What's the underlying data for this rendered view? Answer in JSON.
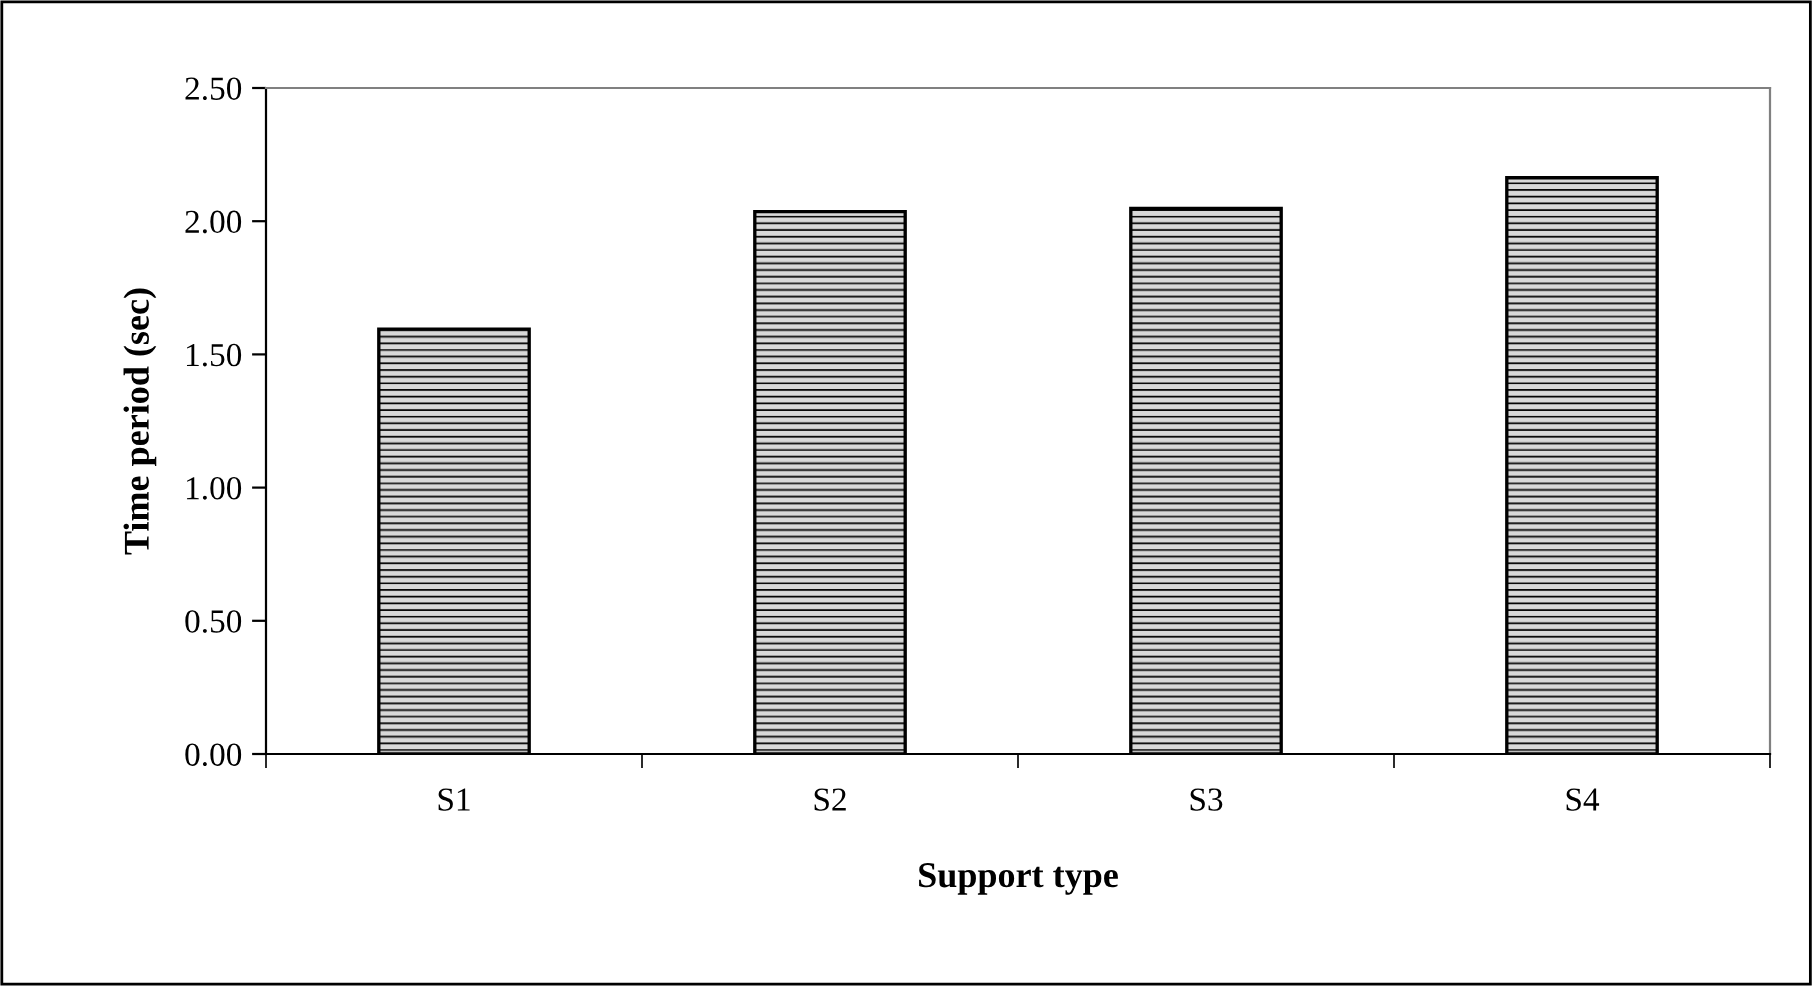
{
  "chart_data": {
    "type": "bar",
    "xlabel": "Support type",
    "ylabel": "Time period (sec)",
    "categories": [
      "S1",
      "S2",
      "S3",
      "S4"
    ],
    "values": [
      1.595,
      2.036,
      2.048,
      2.163
    ],
    "color": "#000000",
    "ylim": [
      0,
      2.5
    ],
    "yticks": [
      {
        "value": 0,
        "label": "0.00"
      },
      {
        "value": 0.5,
        "label": "0.50"
      },
      {
        "value": 1,
        "label": "1.00"
      },
      {
        "value": 1.5,
        "label": "1.50"
      },
      {
        "value": 2,
        "label": "2.00"
      },
      {
        "value": 2.5,
        "label": "2.50"
      }
    ],
    "grid": false,
    "legend": false
  }
}
